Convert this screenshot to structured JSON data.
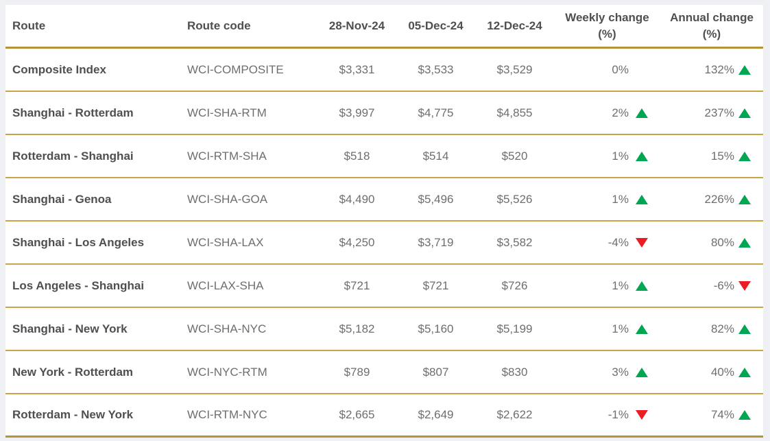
{
  "colors": {
    "gold": "#b6923a",
    "gold_light": "#c8a446",
    "green": "#00a651",
    "red": "#ec1c24",
    "header_text": "#4f4f4f",
    "value_text": "#6e6e6e",
    "page_bg": "#eef0f4",
    "table_bg": "#ffffff"
  },
  "header": {
    "route": "Route",
    "code": "Route code",
    "d1": "28-Nov-24",
    "d2": "05-Dec-24",
    "d3": "12-Dec-24",
    "weekly": "Weekly change (%)",
    "annual": "Annual change (%)"
  },
  "chart_data": {
    "type": "table",
    "columns": [
      "Route",
      "Route code",
      "28-Nov-24",
      "05-Dec-24",
      "12-Dec-24",
      "Weekly change (%)",
      "Annual change (%)"
    ],
    "rows": [
      {
        "route": "Composite Index",
        "code": "WCI-COMPOSITE",
        "values": [
          "$3,331",
          "$3,533",
          "$3,529"
        ],
        "weekly": "0%",
        "weekly_dir": "none",
        "annual": "132%",
        "annual_dir": "up"
      },
      {
        "route": "Shanghai - Rotterdam",
        "code": "WCI-SHA-RTM",
        "values": [
          "$3,997",
          "$4,775",
          "$4,855"
        ],
        "weekly": "2%",
        "weekly_dir": "up",
        "annual": "237%",
        "annual_dir": "up"
      },
      {
        "route": "Rotterdam - Shanghai",
        "code": "WCI-RTM-SHA",
        "values": [
          "$518",
          "$514",
          "$520"
        ],
        "weekly": "1%",
        "weekly_dir": "up",
        "annual": "15%",
        "annual_dir": "up"
      },
      {
        "route": "Shanghai - Genoa",
        "code": "WCI-SHA-GOA",
        "values": [
          "$4,490",
          "$5,496",
          "$5,526"
        ],
        "weekly": "1%",
        "weekly_dir": "up",
        "annual": "226%",
        "annual_dir": "up"
      },
      {
        "route": "Shanghai - Los Angeles",
        "code": "WCI-SHA-LAX",
        "values": [
          "$4,250",
          "$3,719",
          "$3,582"
        ],
        "weekly": "-4%",
        "weekly_dir": "down",
        "annual": "80%",
        "annual_dir": "up"
      },
      {
        "route": "Los Angeles - Shanghai",
        "code": "WCI-LAX-SHA",
        "values": [
          "$721",
          "$721",
          "$726"
        ],
        "weekly": "1%",
        "weekly_dir": "up",
        "annual": "-6%",
        "annual_dir": "down"
      },
      {
        "route": "Shanghai - New York",
        "code": "WCI-SHA-NYC",
        "values": [
          "$5,182",
          "$5,160",
          "$5,199"
        ],
        "weekly": "1%",
        "weekly_dir": "up",
        "annual": "82%",
        "annual_dir": "up"
      },
      {
        "route": "New York - Rotterdam",
        "code": "WCI-NYC-RTM",
        "values": [
          "$789",
          "$807",
          "$830"
        ],
        "weekly": "3%",
        "weekly_dir": "up",
        "annual": "40%",
        "annual_dir": "up"
      },
      {
        "route": "Rotterdam - New York",
        "code": "WCI-RTM-NYC",
        "values": [
          "$2,665",
          "$2,649",
          "$2,622"
        ],
        "weekly": "-1%",
        "weekly_dir": "down",
        "annual": "74%",
        "annual_dir": "up"
      }
    ]
  }
}
